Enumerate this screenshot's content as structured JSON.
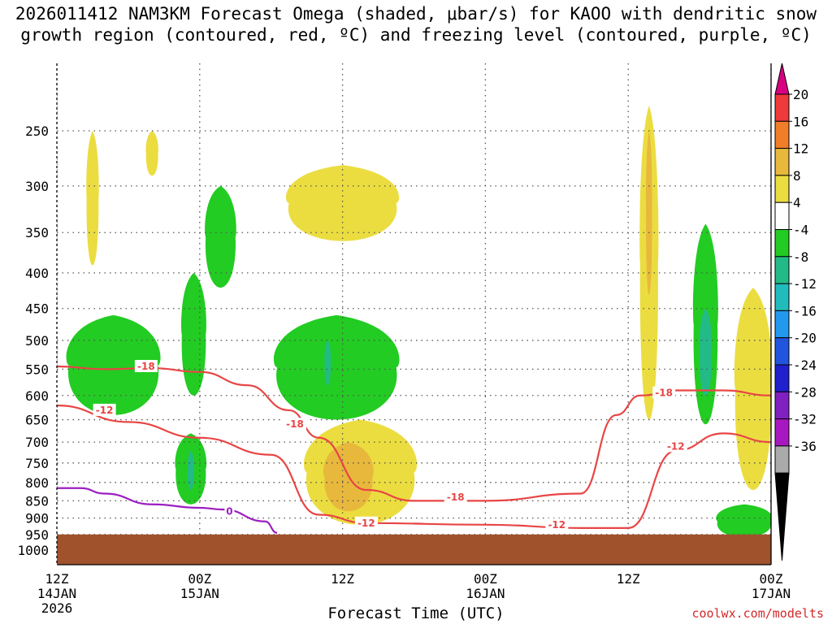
{
  "title_line1": "2026011412 NAM3KM Forecast Omega (shaded, μbar/s) for KAOO with dendritic snow",
  "title_line2": "growth region (contoured, red, ºC) and freezing level (contoured, purple, ºC)",
  "credit": "coolwx.com/modelts",
  "colors": {
    "ground": "#a0522d",
    "dgz_contour": "#e84545",
    "freezing_contour": "#9b1fc0",
    "grid": "#555555"
  },
  "chart_data": {
    "type": "heatmap",
    "title": "2026011412 NAM3KM Forecast Omega (shaded, μbar/s) for KAOO with dendritic snow growth region (contoured, red, ºC) and freezing level (contoured, purple, ºC)",
    "xlabel": "Forecast Time (UTC)",
    "ylabel": "",
    "x_ticks": [
      {
        "hours": 0,
        "lines": [
          "12Z",
          "14JAN",
          "2026"
        ]
      },
      {
        "hours": 12,
        "lines": [
          "00Z",
          "15JAN"
        ]
      },
      {
        "hours": 24,
        "lines": [
          "12Z"
        ]
      },
      {
        "hours": 36,
        "lines": [
          "00Z",
          "16JAN"
        ]
      },
      {
        "hours": 48,
        "lines": [
          "12Z"
        ]
      },
      {
        "hours": 60,
        "lines": [
          "00Z",
          "17JAN"
        ]
      }
    ],
    "xlim": [
      0,
      60
    ],
    "y_ticks": [
      250,
      300,
      350,
      400,
      450,
      500,
      550,
      600,
      650,
      700,
      750,
      800,
      850,
      900,
      950,
      1000
    ],
    "ylim": [
      1050,
      200
    ],
    "y_scale": "log-pressure",
    "grid": true,
    "surface_pressure": 950,
    "colorbar": {
      "labels": [
        "20",
        "16",
        "12",
        "8",
        "4",
        "-4",
        "-8",
        "-12",
        "-16",
        "-20",
        "-24",
        "-28",
        "-32",
        "-36"
      ],
      "colors": [
        "#d80080",
        "#ee3a3a",
        "#f07d28",
        "#e8b83c",
        "#ebdd40",
        "#ffffff",
        "#22cc22",
        "#22bb88",
        "#22bbbb",
        "#2299ee",
        "#2255dd",
        "#2020cc",
        "#8020c0",
        "#a818c0",
        "#aaaaaa",
        "#000000"
      ]
    },
    "shading": [
      {
        "band": "4 to 8",
        "x_hours": [
          2.5,
          2.5,
          3.5,
          3.5
        ],
        "p": [
          250,
          300,
          340,
          390
        ],
        "note": ""
      },
      {
        "band": "4 to 8",
        "x_hours": [
          7.5,
          8.5
        ],
        "p": [
          250,
          290
        ]
      },
      {
        "band": "4 to 8",
        "x_hours": [
          19.5,
          24,
          28.5
        ],
        "p": [
          280,
          360
        ]
      },
      {
        "band": "4 to 8",
        "x_hours": [
          49,
          49.5,
          50.5
        ],
        "p": [
          230,
          650
        ]
      },
      {
        "band": "8 to 12",
        "x_hours": [
          49.5,
          50
        ],
        "p": [
          250,
          430
        ]
      },
      {
        "band": "4 to 8",
        "x_hours": [
          21,
          30
        ],
        "p": [
          650,
          920
        ]
      },
      {
        "band": "8 to 12",
        "x_hours": [
          22.5,
          26.5
        ],
        "p": [
          700,
          880
        ]
      },
      {
        "band": "4 to 8",
        "x_hours": [
          57,
          60
        ],
        "p": [
          420,
          820
        ]
      },
      {
        "band": "-4 to -8",
        "x_hours": [
          12.5,
          15
        ],
        "p": [
          300,
          420
        ]
      },
      {
        "band": "-4 to -8",
        "x_hours": [
          18.5,
          28.5
        ],
        "p": [
          460,
          650
        ]
      },
      {
        "band": "-8 to -12",
        "x_hours": [
          22.5,
          23
        ],
        "p": [
          500,
          580
        ]
      },
      {
        "band": "-4 to -8",
        "x_hours": [
          1,
          8.5
        ],
        "p": [
          460,
          640
        ]
      },
      {
        "band": "-4 to -8",
        "x_hours": [
          10.5,
          12.5
        ],
        "p": [
          400,
          600
        ]
      },
      {
        "band": "-4 to -8",
        "x_hours": [
          53.5,
          55.5
        ],
        "p": [
          340,
          660
        ]
      },
      {
        "band": "-8 to -12",
        "x_hours": [
          54,
          55
        ],
        "p": [
          450,
          600
        ]
      },
      {
        "band": "-4 to -8",
        "x_hours": [
          10,
          12.5
        ],
        "p": [
          680,
          860
        ]
      },
      {
        "band": "-8 to -12",
        "x_hours": [
          11,
          11.5
        ],
        "p": [
          720,
          820
        ]
      },
      {
        "band": "-4 to -8",
        "x_hours": [
          55.5,
          60
        ],
        "p": [
          860,
          960
        ]
      }
    ],
    "contours": [
      {
        "label": "-18",
        "color": "red",
        "x_hours": [
          0,
          4,
          8,
          12,
          16,
          19.5,
          22,
          26,
          30,
          36,
          44,
          47,
          49,
          52,
          56,
          60
        ],
        "p": [
          545,
          550,
          548,
          555,
          580,
          630,
          690,
          820,
          850,
          850,
          830,
          640,
          600,
          590,
          590,
          600
        ],
        "label_positions": [
          {
            "x_hours": 7.5,
            "p": 545
          },
          {
            "x_hours": 20,
            "p": 660
          },
          {
            "x_hours": 33.5,
            "p": 840
          },
          {
            "x_hours": 51,
            "p": 595
          }
        ]
      },
      {
        "label": "-12",
        "color": "red",
        "x_hours": [
          0,
          6,
          12,
          18,
          22,
          26,
          36,
          44,
          48,
          52,
          56,
          60
        ],
        "p": [
          620,
          655,
          690,
          730,
          890,
          915,
          920,
          930,
          930,
          720,
          680,
          700
        ],
        "label_positions": [
          {
            "x_hours": 4,
            "p": 630
          },
          {
            "x_hours": 26,
            "p": 915
          },
          {
            "x_hours": 42,
            "p": 920
          },
          {
            "x_hours": 52,
            "p": 710
          }
        ]
      },
      {
        "label": "0",
        "color": "purple",
        "x_hours": [
          0,
          2,
          4,
          8,
          12,
          14,
          17.5,
          18.5
        ],
        "p": [
          815,
          815,
          830,
          860,
          870,
          875,
          910,
          945
        ],
        "label_positions": [
          {
            "x_hours": 14.5,
            "p": 880
          }
        ]
      }
    ]
  }
}
